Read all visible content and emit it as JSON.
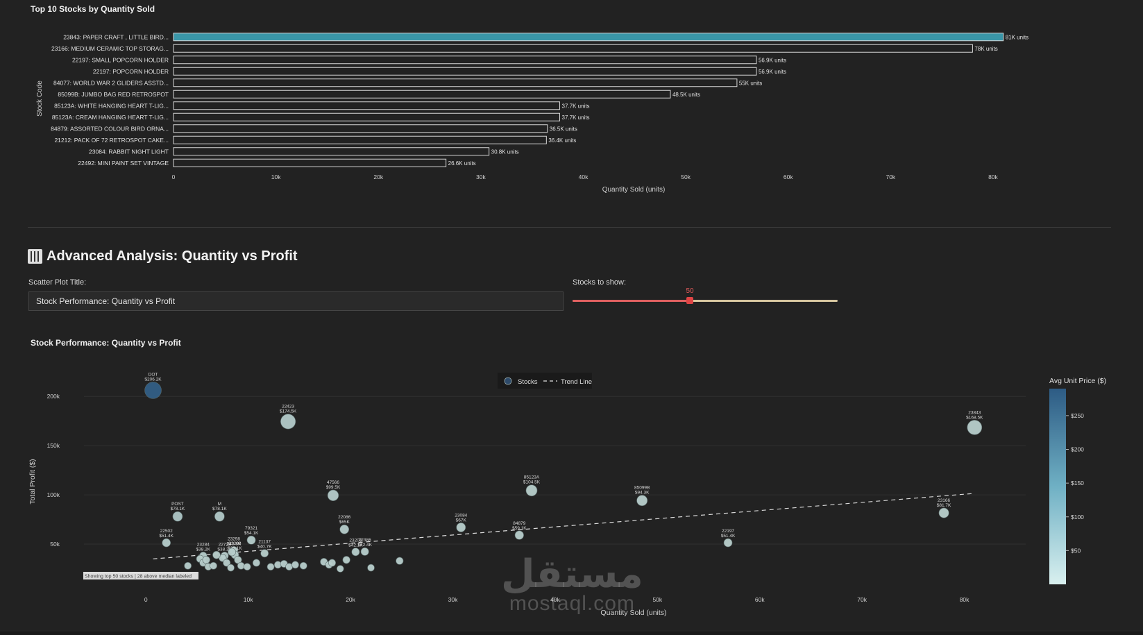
{
  "bar_section": {
    "title": "Top 10 Stocks by Quantity Sold"
  },
  "controls": {
    "section_title": "Advanced Analysis: Quantity vs Profit",
    "title_label": "Scatter Plot Title:",
    "title_value": "Stock Performance: Quantity vs Profit",
    "slider_label": "Stocks to show:",
    "slider_value": "50",
    "slider_min": 0,
    "slider_max": 113
  },
  "chart_data": [
    {
      "type": "bar",
      "orientation": "horizontal",
      "title": "Top 10 Stocks by Quantity Sold",
      "xlabel": "Quantity Sold (units)",
      "ylabel": "Stock Code",
      "xlim": [
        0,
        84000
      ],
      "xticks": [
        0,
        10000,
        20000,
        30000,
        40000,
        50000,
        60000,
        70000,
        80000
      ],
      "xtick_labels": [
        "0",
        "10k",
        "20k",
        "30k",
        "40k",
        "50k",
        "60k",
        "70k",
        "80k"
      ],
      "categories": [
        "23843: PAPER CRAFT , LITTLE BIRD...",
        "23166: MEDIUM CERAMIC TOP STORAG...",
        "22197: SMALL POPCORN HOLDER",
        "22197: POPCORN HOLDER",
        "84077: WORLD WAR 2 GLIDERS ASSTD...",
        "85099B: JUMBO BAG RED RETROSPOT",
        "85123A: WHITE HANGING HEART T-LIG...",
        "85123A: CREAM HANGING HEART T-LIG...",
        "84879: ASSORTED COLOUR BIRD ORNA...",
        "21212: PACK OF 72 RETROSPOT CAKE...",
        "23084: RABBIT NIGHT LIGHT",
        "22492: MINI PAINT SET VINTAGE"
      ],
      "values": [
        81000,
        78000,
        56900,
        56900,
        55000,
        48500,
        37700,
        37700,
        36500,
        36400,
        30800,
        26600
      ],
      "value_labels": [
        "81K units",
        "78K units",
        "56.9K units",
        "56.9K units",
        "55K units",
        "48.5K units",
        "37.7K units",
        "37.7K units",
        "36.5K units",
        "36.4K units",
        "30.8K units",
        "26.6K units"
      ],
      "highlight_color": "#3a96a8",
      "bar_outline": "#d8d8d8",
      "grid": false
    },
    {
      "type": "scatter",
      "title": "Stock Performance: Quantity vs Profit",
      "xlabel": "Quantity Sold (units)",
      "ylabel": "Total Profit ($)",
      "xlim": [
        -3000,
        86000
      ],
      "ylim": [
        0,
        222000
      ],
      "xticks": [
        0,
        10000,
        20000,
        30000,
        40000,
        50000,
        60000,
        70000,
        80000
      ],
      "xtick_labels": [
        "0",
        "10k",
        "20k",
        "30k",
        "40k",
        "50k",
        "60k",
        "70k",
        "80k"
      ],
      "yticks": [
        50000,
        100000,
        150000,
        200000
      ],
      "ytick_labels": [
        "50k",
        "100k",
        "150k",
        "200k"
      ],
      "grid": true,
      "legend": {
        "position": "top-center",
        "items": [
          "Stocks",
          "Trend Line"
        ]
      },
      "colorbar": {
        "title": "Avg Unit Price ($)",
        "range": [
          0,
          290
        ],
        "ticks": [
          50,
          100,
          150,
          200,
          250
        ],
        "tick_labels": [
          "$50",
          "$100",
          "$150",
          "$200",
          "$250"
        ],
        "color_low": "#d9f0ef",
        "color_high": "#2d5b84"
      },
      "trend_line": {
        "x": [
          700,
          81000
        ],
        "y": [
          35000,
          101500
        ]
      },
      "note": "Showing top 50 stocks | 28 above median labeled",
      "points": [
        {
          "x": 700,
          "y": 206200,
          "code": "DOT",
          "profit_label": "$206.2K",
          "price": 280
        },
        {
          "x": 13900,
          "y": 174500,
          "code": "22423",
          "profit_label": "$174.5K",
          "price": 12
        },
        {
          "x": 81000,
          "y": 168500,
          "code": "23843",
          "profit_label": "$168.5K",
          "price": 2
        },
        {
          "x": 18300,
          "y": 99500,
          "code": "47566",
          "profit_label": "$99.5K",
          "price": 9
        },
        {
          "x": 37700,
          "y": 104500,
          "code": "85123A",
          "profit_label": "$104.5K",
          "price": 3
        },
        {
          "x": 48500,
          "y": 94300,
          "code": "85099B",
          "profit_label": "$94.3K",
          "price": 2
        },
        {
          "x": 78000,
          "y": 81700,
          "code": "23166",
          "profit_label": "$81.7K",
          "price": 1
        },
        {
          "x": 3100,
          "y": 78100,
          "code": "POST",
          "profit_label": "$78.1K",
          "price": 20
        },
        {
          "x": 7200,
          "y": 78100,
          "code": "M",
          "profit_label": "$78.1K",
          "price": 15
        },
        {
          "x": 19400,
          "y": 65000,
          "code": "22086",
          "profit_label": "$65K",
          "price": 4
        },
        {
          "x": 30800,
          "y": 67000,
          "code": "23084",
          "profit_label": "$67K",
          "price": 2
        },
        {
          "x": 36500,
          "y": 59100,
          "code": "84879",
          "profit_label": "$59.1K",
          "price": 2
        },
        {
          "x": 56900,
          "y": 51400,
          "code": "22197",
          "profit_label": "$51.4K",
          "price": 1
        },
        {
          "x": 2000,
          "y": 51400,
          "code": "22502",
          "profit_label": "$51.4K",
          "price": 8
        },
        {
          "x": 10300,
          "y": 54100,
          "code": "79321",
          "profit_label": "$54.1K",
          "price": 6
        },
        {
          "x": 11600,
          "y": 40700,
          "code": "21137",
          "profit_label": "$40.7K",
          "price": 3
        },
        {
          "x": 5600,
          "y": 38200,
          "code": "23284",
          "profit_label": "$38.2K",
          "price": 4
        },
        {
          "x": 7700,
          "y": 38200,
          "code": "22720",
          "profit_label": "$38.2K",
          "price": 5
        },
        {
          "x": 8600,
          "y": 43600,
          "code": "23298",
          "profit_label": "$43.6K",
          "price": 5
        },
        {
          "x": 8700,
          "y": 39100,
          "code": "23203",
          "profit_label": "$39.1K",
          "price": 2
        },
        {
          "x": 20500,
          "y": 42100,
          "code": "23203",
          "profit_label": "$42.1K",
          "price": 2
        },
        {
          "x": 21400,
          "y": 42400,
          "code": "22386",
          "profit_label": "$42.4K",
          "price": 2
        },
        {
          "x": 4100,
          "y": 28000,
          "price": 2
        },
        {
          "x": 5300,
          "y": 35000,
          "price": 3
        },
        {
          "x": 5600,
          "y": 31000,
          "price": 2
        },
        {
          "x": 5900,
          "y": 34000,
          "price": 2
        },
        {
          "x": 6100,
          "y": 27000,
          "price": 3
        },
        {
          "x": 6600,
          "y": 28000,
          "price": 2
        },
        {
          "x": 7500,
          "y": 36000,
          "price": 2
        },
        {
          "x": 7900,
          "y": 31000,
          "price": 2
        },
        {
          "x": 8300,
          "y": 26000,
          "price": 2
        },
        {
          "x": 9000,
          "y": 34000,
          "price": 3
        },
        {
          "x": 9300,
          "y": 28000,
          "price": 2
        },
        {
          "x": 9900,
          "y": 27000,
          "price": 2
        },
        {
          "x": 10800,
          "y": 31000,
          "price": 2
        },
        {
          "x": 12200,
          "y": 27000,
          "price": 2
        },
        {
          "x": 12900,
          "y": 29000,
          "price": 2
        },
        {
          "x": 13500,
          "y": 30000,
          "price": 2
        },
        {
          "x": 14000,
          "y": 27000,
          "price": 2
        },
        {
          "x": 14600,
          "y": 29000,
          "price": 2
        },
        {
          "x": 17400,
          "y": 32000,
          "price": 2
        },
        {
          "x": 17900,
          "y": 29000,
          "price": 2
        },
        {
          "x": 18200,
          "y": 31000,
          "price": 2
        },
        {
          "x": 19000,
          "y": 25000,
          "price": 2
        },
        {
          "x": 19600,
          "y": 34000,
          "price": 3
        },
        {
          "x": 22000,
          "y": 26000,
          "price": 2
        },
        {
          "x": 24800,
          "y": 33000,
          "price": 2
        },
        {
          "x": 6900,
          "y": 39000,
          "price": 3
        },
        {
          "x": 8400,
          "y": 42000,
          "price": 4
        },
        {
          "x": 15400,
          "y": 28000,
          "price": 2
        }
      ]
    }
  ]
}
